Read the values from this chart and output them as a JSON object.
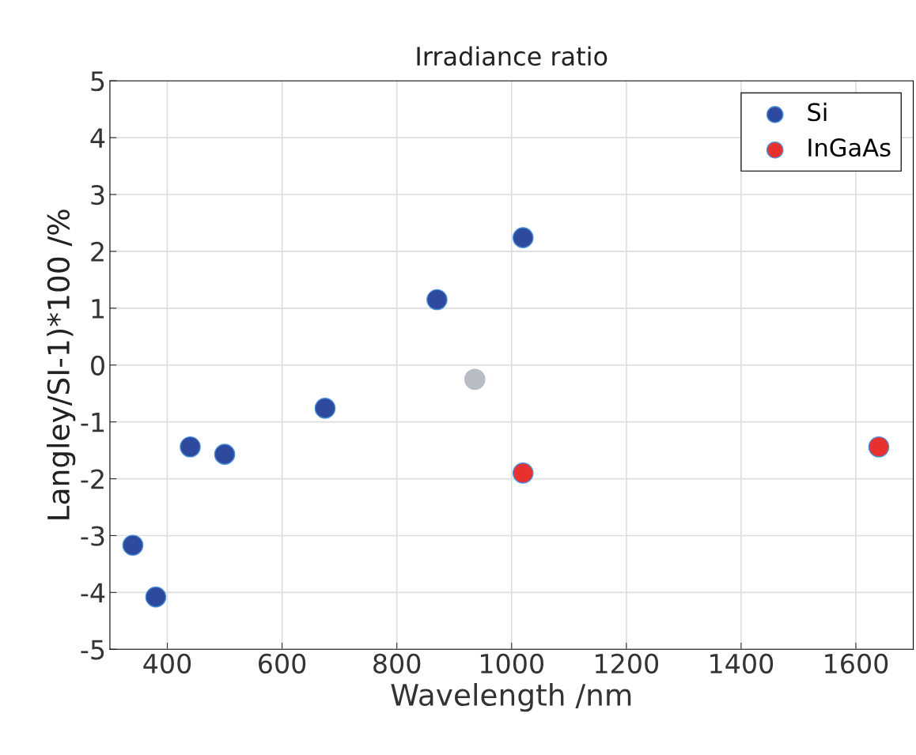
{
  "chart_data": {
    "type": "scatter",
    "title": "Irradiance ratio",
    "xlabel": "Wavelength /nm",
    "ylabel": "Langley/SI-1)*100 /%",
    "series": [
      {
        "name": "Si",
        "color": "#2e4a9e",
        "x": [
          340,
          380,
          440,
          500,
          675,
          870,
          1020
        ],
        "values": [
          -3.17,
          -4.08,
          -1.44,
          -1.57,
          -0.76,
          1.15,
          2.24
        ]
      },
      {
        "color": "#b8bcc4",
        "x": [
          936
        ],
        "values": [
          -0.25
        ]
      },
      {
        "name": "InGaAs",
        "color": "#e8312e",
        "x": [
          1020,
          1640
        ],
        "values": [
          -1.9,
          -1.44
        ]
      }
    ],
    "xlim": [
      300,
      1700
    ],
    "xticks": [
      400,
      600,
      800,
      1000,
      1200,
      1400,
      1600
    ],
    "ylim": [
      -5,
      5
    ],
    "yticks": [
      -5,
      -4,
      -3,
      -2,
      -1,
      0,
      1,
      2,
      3,
      4,
      5
    ],
    "grid": true,
    "legend": "top right",
    "marker": "circle"
  }
}
